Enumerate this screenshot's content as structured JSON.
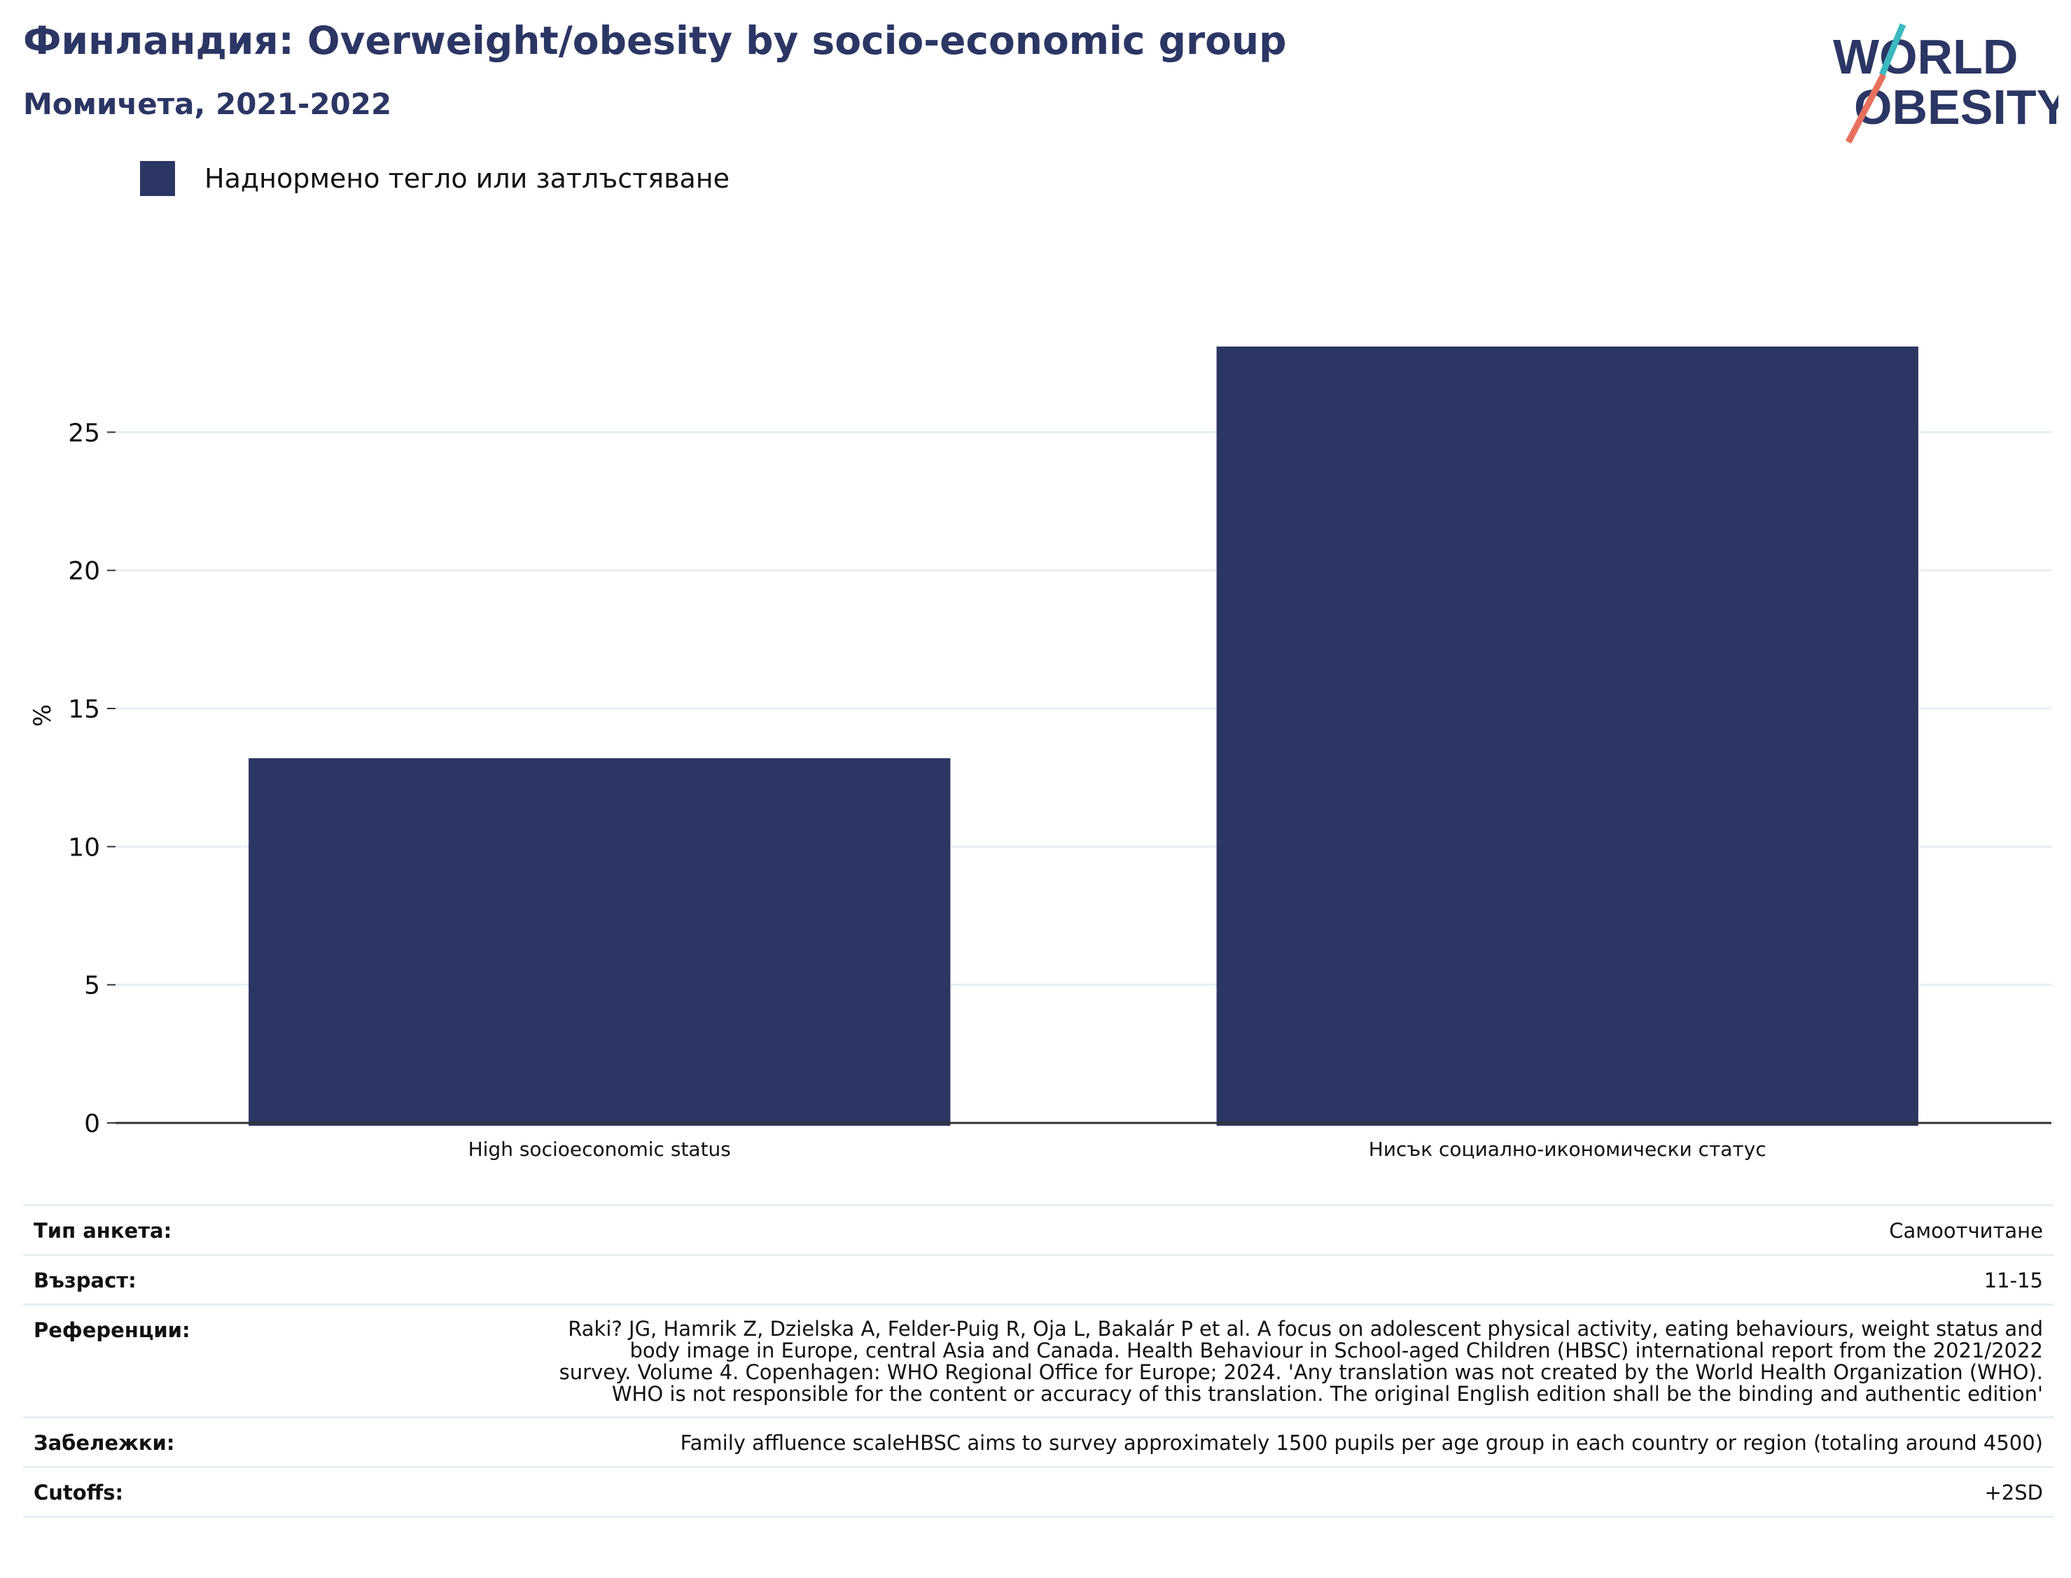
{
  "header": {
    "title": "Финландия: Overweight/obesity by socio-economic group",
    "subtitle": "Момичета, 2021-2022",
    "logo_line1": "WORLD",
    "logo_line2": "OBESITY"
  },
  "legend": {
    "label": "Наднормено тегло или затлъстяване",
    "color": "#2b3664"
  },
  "chart_data": {
    "type": "bar",
    "categories": [
      "High socioeconomic status",
      "Нисък социално-икономически статус"
    ],
    "series": [
      {
        "name": "Наднормено тегло или затлъстяване",
        "values": [
          13.2,
          28.1
        ]
      }
    ],
    "xlabel": "",
    "ylabel": "%",
    "ylim": [
      0,
      30
    ],
    "yticks": [
      0,
      5,
      10,
      15,
      20,
      25
    ],
    "grid": true,
    "legend_position": "top-left",
    "bar_color": "#2b3664"
  },
  "meta": [
    {
      "key": "Тип анкета:",
      "value": "Самоотчитане"
    },
    {
      "key": "Възраст:",
      "value": "11-15"
    },
    {
      "key": "Референции:",
      "value": "Raki? JG, Hamrik Z, Dzielska A, Felder-Puig R, Oja L, Bakalár P et al. A focus on adolescent physical activity, eating behaviours, weight status and body image in Europe, central Asia and Canada. Health Behaviour in School-aged Children (HBSC) international report from the 2021/2022 survey. Volume 4. Copenhagen: WHO Regional Office for Europe; 2024. 'Any translation was not created by the World Health Organization (WHO). WHO is not responsible for the content or accuracy of this translation. The original English edition shall be the binding and authentic edition'"
    },
    {
      "key": "Забележки:",
      "value": "Family affluence scaleHBSC aims to survey approximately 1500 pupils per age group in each country or region (totaling around 4500)"
    },
    {
      "key": "Cutoffs:",
      "value": "+2SD"
    }
  ]
}
